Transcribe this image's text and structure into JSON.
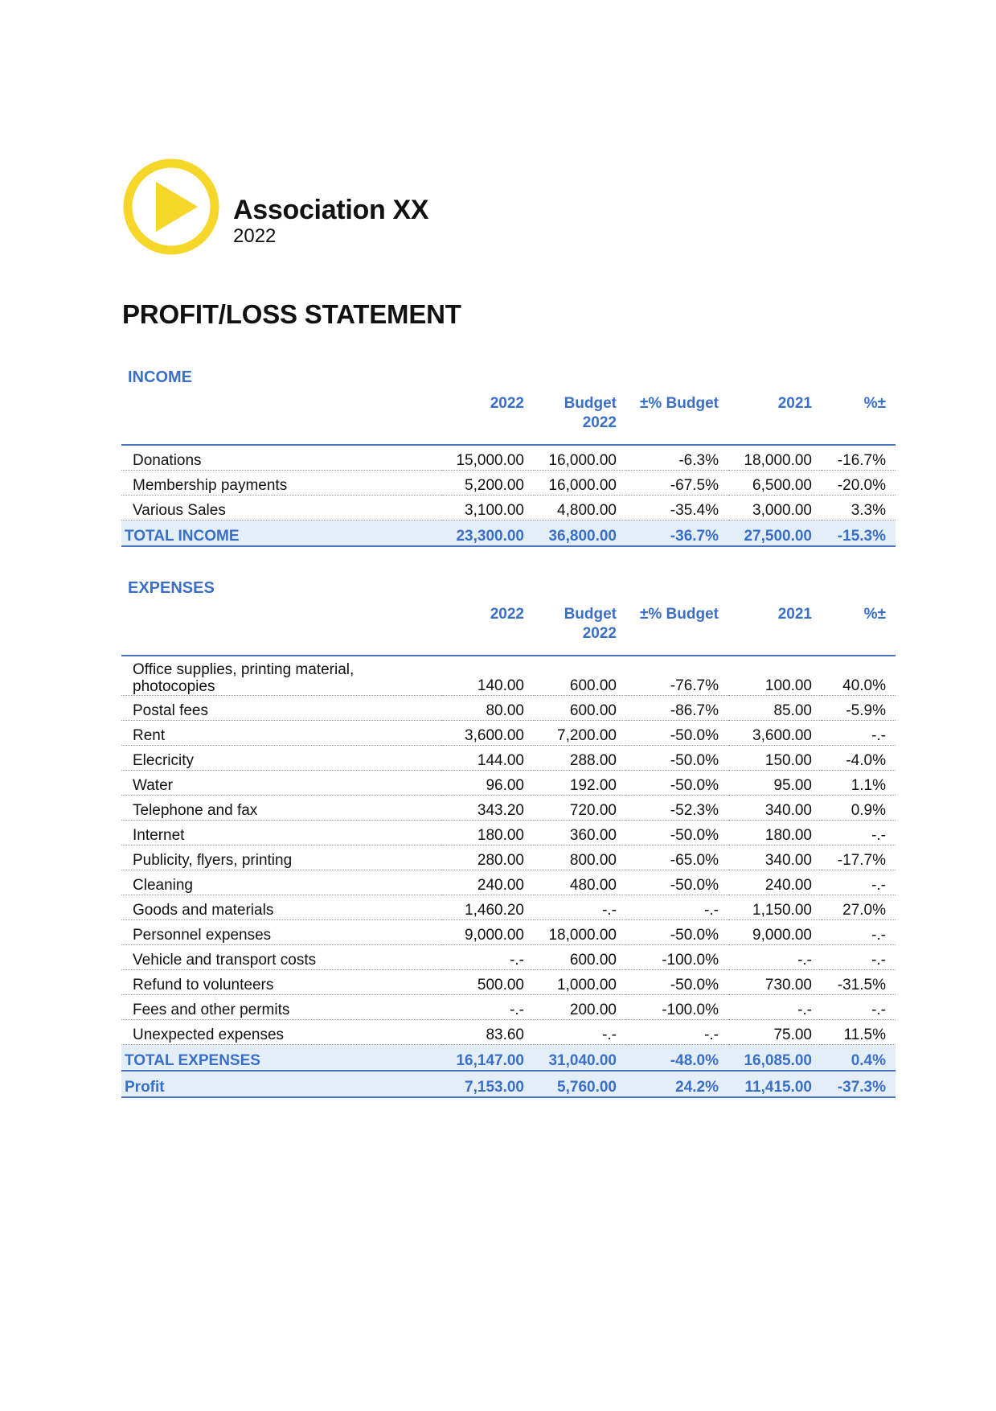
{
  "organization": {
    "name": "Association XX",
    "year": "2022",
    "logo_icon": "play-circle-icon",
    "logo_color": "#f5d629"
  },
  "title": "PROFIT/LOSS STATEMENT",
  "accent_color": "#3a6fc9",
  "columns": {
    "year": "2022",
    "budget": "Budget 2022",
    "pct_budget": "±% Budget",
    "prev_year": "2021",
    "pct": "%±"
  },
  "income": {
    "label": "INCOME",
    "rows": [
      {
        "label": "Donations",
        "y2022": "15,000.00",
        "budget": "16,000.00",
        "pct_budget": "-6.3%",
        "y2021": "18,000.00",
        "pct": "-16.7%"
      },
      {
        "label": "Membership payments",
        "y2022": "5,200.00",
        "budget": "16,000.00",
        "pct_budget": "-67.5%",
        "y2021": "6,500.00",
        "pct": "-20.0%"
      },
      {
        "label": "Various Sales",
        "y2022": "3,100.00",
        "budget": "4,800.00",
        "pct_budget": "-35.4%",
        "y2021": "3,000.00",
        "pct": "3.3%"
      }
    ],
    "total": {
      "label": "TOTAL INCOME",
      "y2022": "23,300.00",
      "budget": "36,800.00",
      "pct_budget": "-36.7%",
      "y2021": "27,500.00",
      "pct": "-15.3%"
    }
  },
  "expenses": {
    "label": "EXPENSES",
    "rows": [
      {
        "label": "Office supplies, printing material, photocopies",
        "y2022": "140.00",
        "budget": "600.00",
        "pct_budget": "-76.7%",
        "y2021": "100.00",
        "pct": "40.0%"
      },
      {
        "label": "Postal fees",
        "y2022": "80.00",
        "budget": "600.00",
        "pct_budget": "-86.7%",
        "y2021": "85.00",
        "pct": "-5.9%"
      },
      {
        "label": "Rent",
        "y2022": "3,600.00",
        "budget": "7,200.00",
        "pct_budget": "-50.0%",
        "y2021": "3,600.00",
        "pct": "-.-"
      },
      {
        "label": "Elecricity",
        "y2022": "144.00",
        "budget": "288.00",
        "pct_budget": "-50.0%",
        "y2021": "150.00",
        "pct": "-4.0%"
      },
      {
        "label": "Water",
        "y2022": "96.00",
        "budget": "192.00",
        "pct_budget": "-50.0%",
        "y2021": "95.00",
        "pct": "1.1%"
      },
      {
        "label": "Telephone and fax",
        "y2022": "343.20",
        "budget": "720.00",
        "pct_budget": "-52.3%",
        "y2021": "340.00",
        "pct": "0.9%"
      },
      {
        "label": "Internet",
        "y2022": "180.00",
        "budget": "360.00",
        "pct_budget": "-50.0%",
        "y2021": "180.00",
        "pct": "-.-"
      },
      {
        "label": "Publicity, flyers, printing",
        "y2022": "280.00",
        "budget": "800.00",
        "pct_budget": "-65.0%",
        "y2021": "340.00",
        "pct": "-17.7%"
      },
      {
        "label": "Cleaning",
        "y2022": "240.00",
        "budget": "480.00",
        "pct_budget": "-50.0%",
        "y2021": "240.00",
        "pct": "-.-"
      },
      {
        "label": "Goods and materials",
        "y2022": "1,460.20",
        "budget": "-.-",
        "pct_budget": "-.-",
        "y2021": "1,150.00",
        "pct": "27.0%"
      },
      {
        "label": "Personnel expenses",
        "y2022": "9,000.00",
        "budget": "18,000.00",
        "pct_budget": "-50.0%",
        "y2021": "9,000.00",
        "pct": "-.-"
      },
      {
        "label": "Vehicle and transport costs",
        "y2022": "-.-",
        "budget": "600.00",
        "pct_budget": "-100.0%",
        "y2021": "-.-",
        "pct": "-.-"
      },
      {
        "label": "Refund to volunteers",
        "y2022": "500.00",
        "budget": "1,000.00",
        "pct_budget": "-50.0%",
        "y2021": "730.00",
        "pct": "-31.5%"
      },
      {
        "label": "Fees and other permits",
        "y2022": "-.-",
        "budget": "200.00",
        "pct_budget": "-100.0%",
        "y2021": "-.-",
        "pct": "-.-"
      },
      {
        "label": "Unexpected expenses",
        "y2022": "83.60",
        "budget": "-.-",
        "pct_budget": "-.-",
        "y2021": "75.00",
        "pct": "11.5%"
      }
    ],
    "total": {
      "label": "TOTAL EXPENSES",
      "y2022": "16,147.00",
      "budget": "31,040.00",
      "pct_budget": "-48.0%",
      "y2021": "16,085.00",
      "pct": "0.4%"
    },
    "profit": {
      "label": "Profit",
      "y2022": "7,153.00",
      "budget": "5,760.00",
      "pct_budget": "24.2%",
      "y2021": "11,415.00",
      "pct": "-37.3%"
    }
  }
}
